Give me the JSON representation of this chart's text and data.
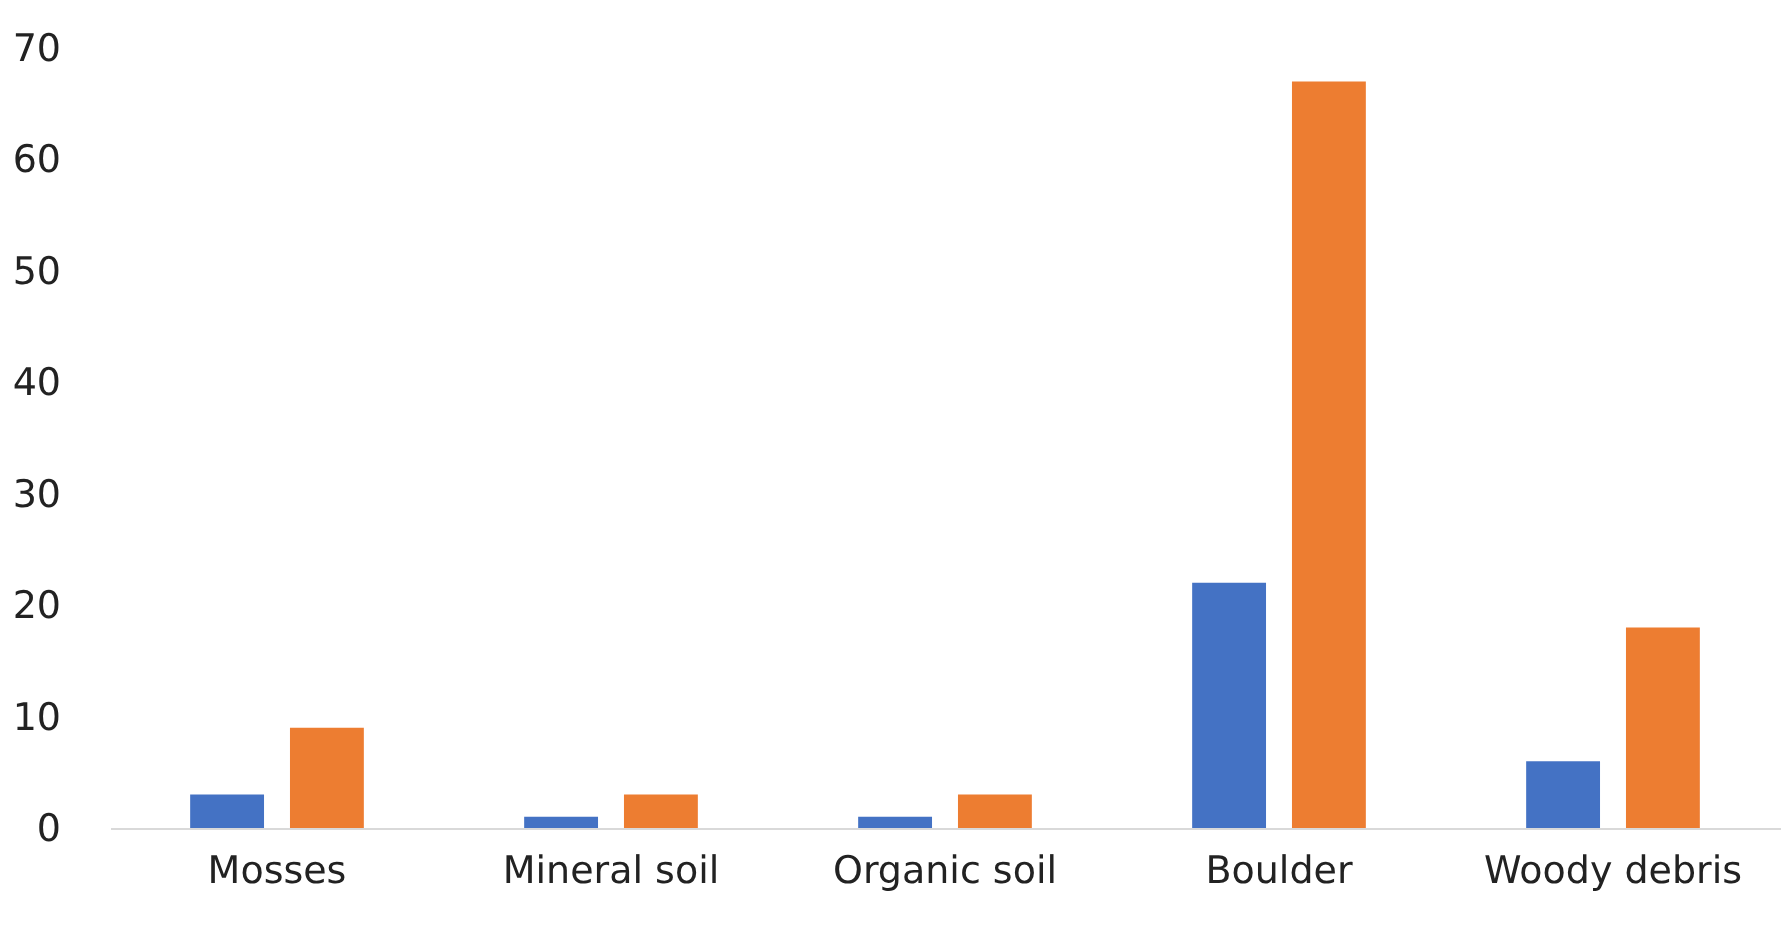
{
  "chart_data": {
    "type": "bar",
    "categories": [
      "Mosses",
      "Mineral soil",
      "Organic soil",
      "Boulder",
      "Woody debris"
    ],
    "series": [
      {
        "color": "#4472c4",
        "values": [
          3,
          1,
          1,
          22,
          6
        ]
      },
      {
        "color": "#ed7d31",
        "values": [
          9,
          3,
          3,
          67,
          18
        ]
      }
    ],
    "ylim": [
      0,
      70
    ],
    "yticks": [
      0,
      10,
      20,
      30,
      40,
      50,
      60,
      70
    ],
    "grid": false,
    "legend": false
  }
}
